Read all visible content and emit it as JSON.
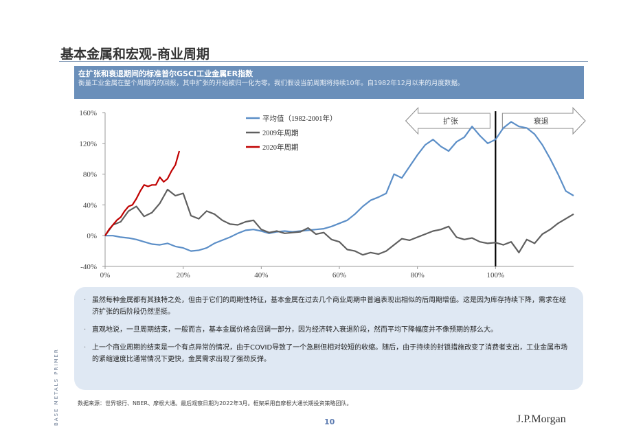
{
  "page": {
    "title": "基本金属和宏观-商业周期",
    "page_number": "10",
    "side_label": "BASE METALS PRIMER",
    "logo": "J.P.Morgan",
    "source": "数据来源：世界银行、NBER、摩根大通。最后观察日期为2022年3月。框架采用自摩根大通长期投资策略团队。"
  },
  "chart_header": {
    "title": "在扩张和衰退期间的标准普尔GSCI工业金属ER指数",
    "subtitle": "衡量工业金属在整个周期内的回报，其中扩张的开始被归一化为零。我们假设当前周期将持续10年。自1982年12月以来的月度数据。"
  },
  "chart_data": {
    "type": "line",
    "title": "",
    "xlabel": "",
    "ylabel": "",
    "xlim": [
      0,
      120
    ],
    "ylim": [
      -40,
      160
    ],
    "x_ticks": [
      "0%",
      "20%",
      "40%",
      "60%",
      "80%",
      "100%"
    ],
    "y_ticks": [
      "-40%",
      "0%",
      "40%",
      "80%",
      "120%",
      "160%"
    ],
    "legend_position": "top-center",
    "annotations": {
      "expansion_label": "扩张",
      "recession_label": "衰退",
      "divider_x": 100
    },
    "series": [
      {
        "name": "平均值（1982-2001年）",
        "color": "#5b8ec7",
        "x": [
          0,
          2,
          4,
          6,
          8,
          10,
          12,
          14,
          16,
          18,
          20,
          22,
          24,
          26,
          28,
          30,
          32,
          34,
          36,
          38,
          40,
          42,
          44,
          46,
          48,
          50,
          52,
          54,
          56,
          58,
          60,
          62,
          64,
          66,
          68,
          70,
          72,
          74,
          76,
          78,
          80,
          82,
          84,
          86,
          88,
          90,
          92,
          94,
          96,
          98,
          100,
          102,
          104,
          106,
          108,
          110,
          112,
          114,
          116,
          118,
          120
        ],
        "values": [
          0,
          0,
          -2,
          -3,
          -5,
          -8,
          -11,
          -12,
          -10,
          -14,
          -16,
          -20,
          -19,
          -16,
          -10,
          -6,
          -2,
          3,
          7,
          8,
          6,
          3,
          5,
          6,
          5,
          6,
          7,
          8,
          9,
          12,
          16,
          20,
          28,
          38,
          46,
          50,
          55,
          80,
          75,
          90,
          105,
          118,
          125,
          116,
          110,
          122,
          128,
          142,
          130,
          120,
          125,
          140,
          148,
          142,
          140,
          132,
          118,
          100,
          80,
          58,
          52
        ]
      },
      {
        "name": "2009年周期",
        "color": "#5f5f5f",
        "x": [
          0,
          2,
          4,
          6,
          8,
          10,
          12,
          14,
          16,
          18,
          20,
          22,
          24,
          26,
          28,
          30,
          32,
          34,
          36,
          38,
          40,
          42,
          44,
          46,
          48,
          50,
          52,
          54,
          56,
          58,
          60,
          62,
          64,
          66,
          68,
          70,
          72,
          74,
          76,
          78,
          80,
          82,
          84,
          86,
          88,
          90,
          92,
          94,
          96,
          98,
          100,
          102,
          104,
          106,
          108,
          110,
          112,
          114,
          116,
          118,
          120
        ],
        "values": [
          0,
          14,
          18,
          32,
          38,
          25,
          30,
          42,
          60,
          52,
          55,
          26,
          22,
          32,
          28,
          20,
          15,
          14,
          18,
          20,
          8,
          4,
          6,
          3,
          4,
          5,
          10,
          2,
          4,
          -5,
          -8,
          -18,
          -20,
          -25,
          -22,
          -24,
          -20,
          -12,
          -4,
          -6,
          -2,
          2,
          6,
          8,
          12,
          -2,
          -5,
          -3,
          -8,
          -10,
          -9,
          -12,
          -8,
          -22,
          -5,
          -10,
          2,
          8,
          16,
          22,
          28
        ]
      },
      {
        "name": "2020年周期",
        "color": "#c00000",
        "x": [
          0,
          1,
          2,
          3,
          4,
          5,
          6,
          7,
          8,
          9,
          10,
          11,
          12,
          13,
          14,
          15,
          16,
          17,
          18,
          19
        ],
        "values": [
          0,
          8,
          14,
          20,
          24,
          32,
          38,
          40,
          48,
          58,
          66,
          64,
          66,
          66,
          76,
          70,
          74,
          84,
          92,
          110
        ]
      }
    ]
  },
  "notes": [
    {
      "bullet": "·",
      "text": "虽然每种金属都有其独特之处，但由于它们的周期性特征，基本金属在过去几个商业周期中普遍表现出相似的后周期增值。这是因为库存持续下降，需求在经济扩张的后阶段仍然坚挺。"
    },
    {
      "bullet": "·",
      "text": "直观地说，一旦周期结束，一般而言，基本金属价格会回调一部分，因为经济转入衰退阶段，然而平均下降幅度并不像预期的那么大。"
    },
    {
      "bullet": "·",
      "text": "上一个商业周期的结束是一个有点异常的情况，由于COVID导致了一个急剧但相对较短的收缩。随后，由于持续的封锁措施改变了消费者支出，工业金属市场的紧缩速度比通常情况下更快，金属需求出现了强劲反弹。"
    }
  ]
}
